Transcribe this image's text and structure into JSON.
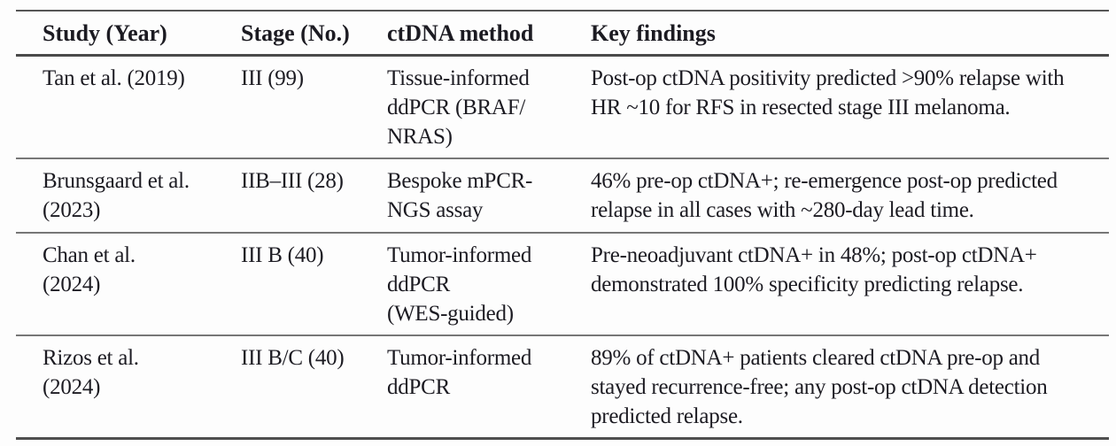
{
  "table": {
    "columns": [
      {
        "label": "Study (Year)"
      },
      {
        "label": "Stage (No.)"
      },
      {
        "label": "ctDNA method"
      },
      {
        "label": "Key findings"
      }
    ],
    "rows": [
      {
        "study": "Tan et al. (2019)",
        "stage": "III (99)",
        "method": "Tissue-informed\nddPCR (BRAF/\nNRAS)",
        "findings": "Post-op ctDNA positivity predicted >90% relapse with\nHR ~10 for RFS in resected stage III melanoma."
      },
      {
        "study": "Brunsgaard et al.\n(2023)",
        "stage": "IIB–III (28)",
        "method": "Bespoke mPCR-\nNGS assay",
        "findings": "46% pre-op ctDNA+; re-emergence post-op predicted\nrelapse in all cases with ~280-day lead time."
      },
      {
        "study": "Chan et al.\n(2024)",
        "stage": "III B (40)",
        "method": "Tumor-informed\nddPCR\n(WES-guided)",
        "findings": "Pre-neoadjuvant ctDNA+ in 48%; post-op ctDNA+\ndemonstrated 100% specificity predicting relapse."
      },
      {
        "study": "Rizos et al.\n(2024)",
        "stage": "III B/C (40)",
        "method": "Tumor-informed\nddPCR",
        "findings": "89% of ctDNA+ patients cleared ctDNA pre-op and\nstayed recurrence-free; any post-op ctDNA detection\npredicted relapse."
      }
    ]
  }
}
